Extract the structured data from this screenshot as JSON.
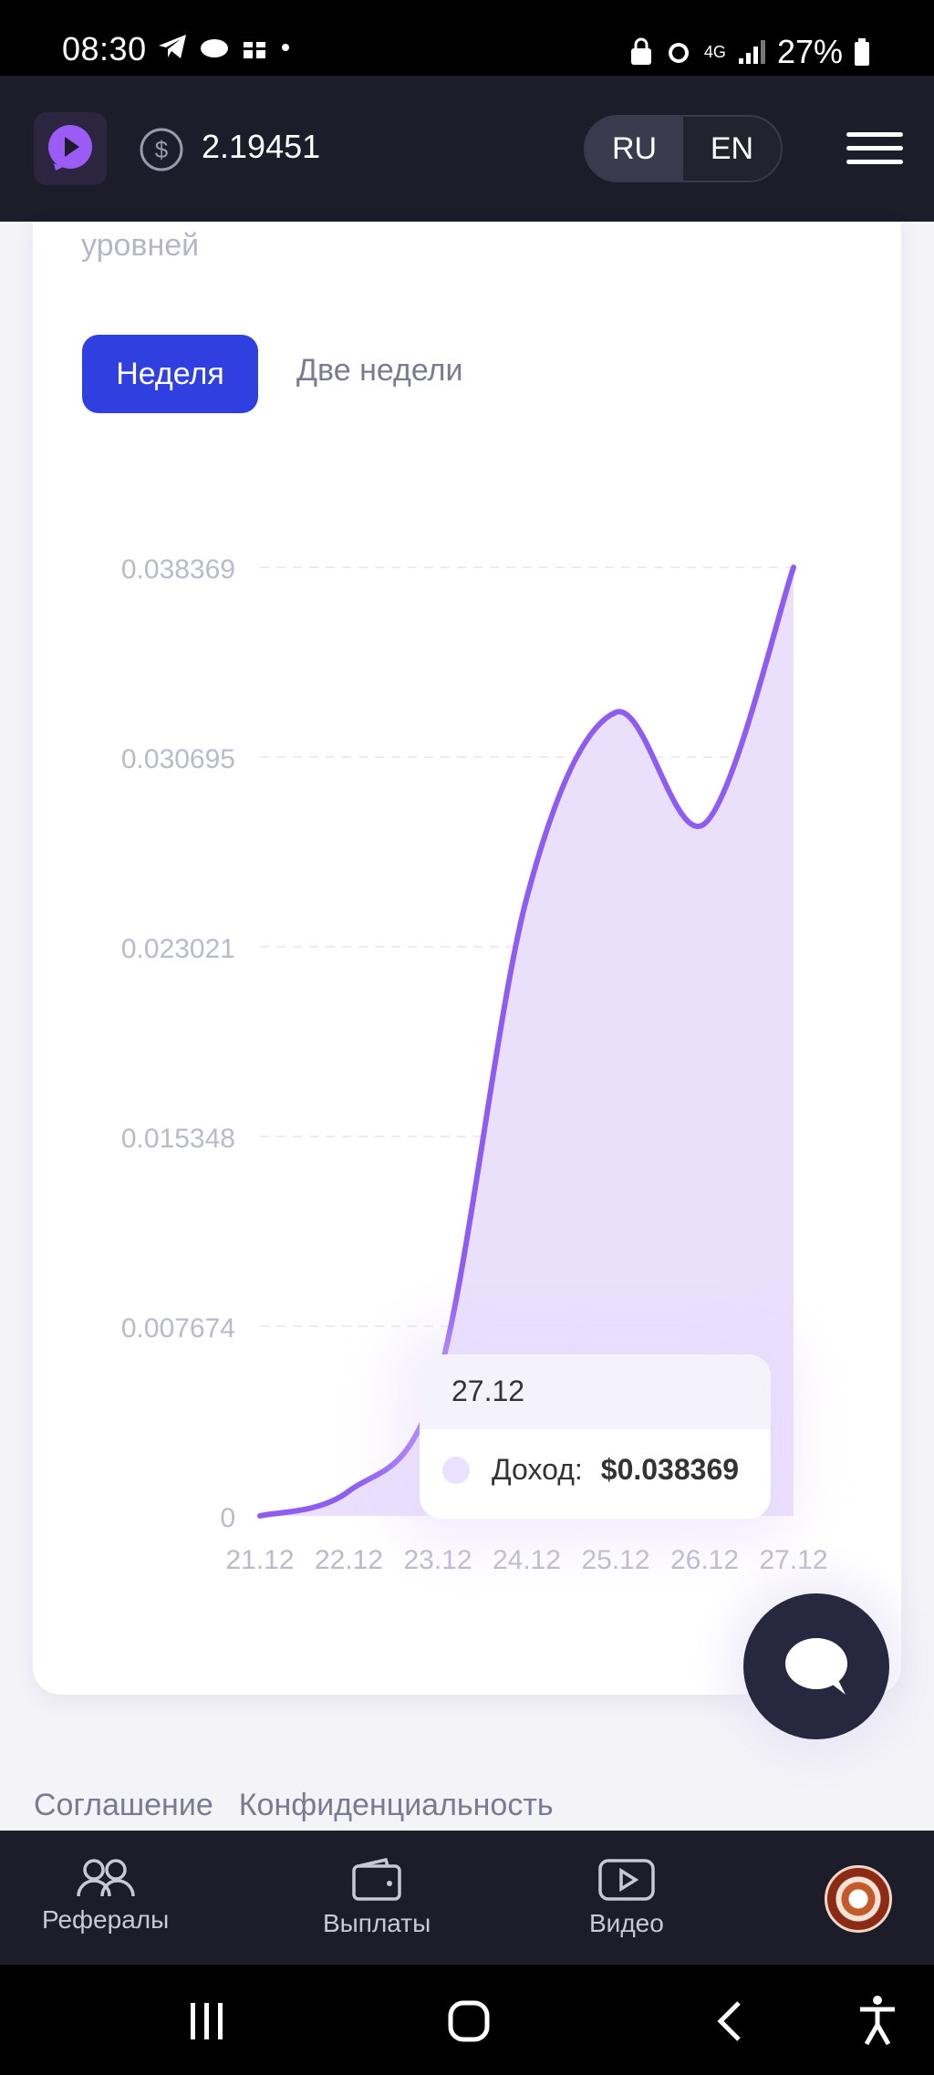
{
  "status_bar": {
    "time": "08:30",
    "battery": "27%",
    "network": "4G"
  },
  "header": {
    "balance": "2.19451",
    "languages": [
      {
        "label": "RU",
        "active": true
      },
      {
        "label": "EN",
        "active": false
      }
    ]
  },
  "card": {
    "subtitle_fragment": "уровней",
    "tabs": [
      {
        "label": "Неделя",
        "active": true
      },
      {
        "label": "Две недели",
        "active": false
      }
    ]
  },
  "tooltip": {
    "date": "27.12",
    "series_label": "Доход:",
    "value": "$0.038369"
  },
  "footer_links": [
    "Соглашение",
    "Конфиденциальность"
  ],
  "bottom_nav": [
    {
      "label": "Рефералы",
      "icon": "users-icon"
    },
    {
      "label": "Выплаты",
      "icon": "wallet-icon"
    },
    {
      "label": "Видео",
      "icon": "video-icon"
    }
  ],
  "colors": {
    "accent": "#2f3fe0",
    "line": "#8f5cf2",
    "area": "#eae0fc",
    "header_bg": "#1c1c2a"
  },
  "chart_data": {
    "type": "area",
    "x": [
      "21.12",
      "22.12",
      "23.12",
      "24.12",
      "25.12",
      "26.12",
      "27.12"
    ],
    "series": [
      {
        "name": "Доход",
        "values": [
          0,
          0.001,
          0.0055,
          0.025,
          0.0325,
          0.028,
          0.038369
        ]
      }
    ],
    "y_ticks": [
      "0",
      "0.007674",
      "0.015348",
      "0.023021",
      "0.030695",
      "0.038369"
    ],
    "ylim": [
      0,
      0.038369
    ],
    "grid": true
  }
}
